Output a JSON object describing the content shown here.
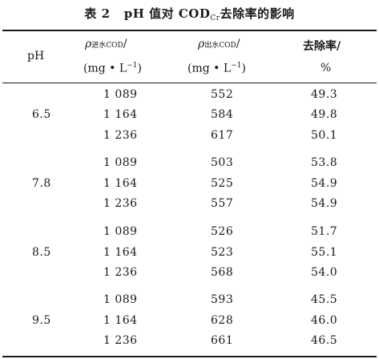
{
  "caption": {
    "label": "表 2",
    "title_pre": "pH 值对 COD",
    "title_sub": "Cr",
    "title_post": "去除率的影响"
  },
  "header": {
    "ph": "pH",
    "in_rho": "ρ",
    "in_sub": "进水COD",
    "in_slash": "/",
    "in_unit": "(mg • L",
    "in_unit_sup": "−1",
    "in_unit_close": ")",
    "out_rho": "ρ",
    "out_sub": "出水COD",
    "out_slash": "/",
    "out_unit": "(mg • L",
    "out_unit_sup": "−1",
    "out_unit_close": ")",
    "rate": "去除率/",
    "rate_unit": "%"
  },
  "groups": [
    {
      "ph": "6.5",
      "rows": [
        {
          "in": "1 089",
          "out": "552",
          "rate": "49.3"
        },
        {
          "in": "1 164",
          "out": "584",
          "rate": "49.8"
        },
        {
          "in": "1 236",
          "out": "617",
          "rate": "50.1"
        }
      ]
    },
    {
      "ph": "7.8",
      "rows": [
        {
          "in": "1 089",
          "out": "503",
          "rate": "53.8"
        },
        {
          "in": "1 164",
          "out": "525",
          "rate": "54.9"
        },
        {
          "in": "1 236",
          "out": "557",
          "rate": "54.9"
        }
      ]
    },
    {
      "ph": "8.5",
      "rows": [
        {
          "in": "1 089",
          "out": "526",
          "rate": "51.7"
        },
        {
          "in": "1 164",
          "out": "523",
          "rate": "55.1"
        },
        {
          "in": "1 236",
          "out": "568",
          "rate": "54.0"
        }
      ]
    },
    {
      "ph": "9.5",
      "rows": [
        {
          "in": "1 089",
          "out": "593",
          "rate": "45.5"
        },
        {
          "in": "1 164",
          "out": "628",
          "rate": "46.0"
        },
        {
          "in": "1 236",
          "out": "661",
          "rate": "46.5"
        }
      ]
    }
  ]
}
